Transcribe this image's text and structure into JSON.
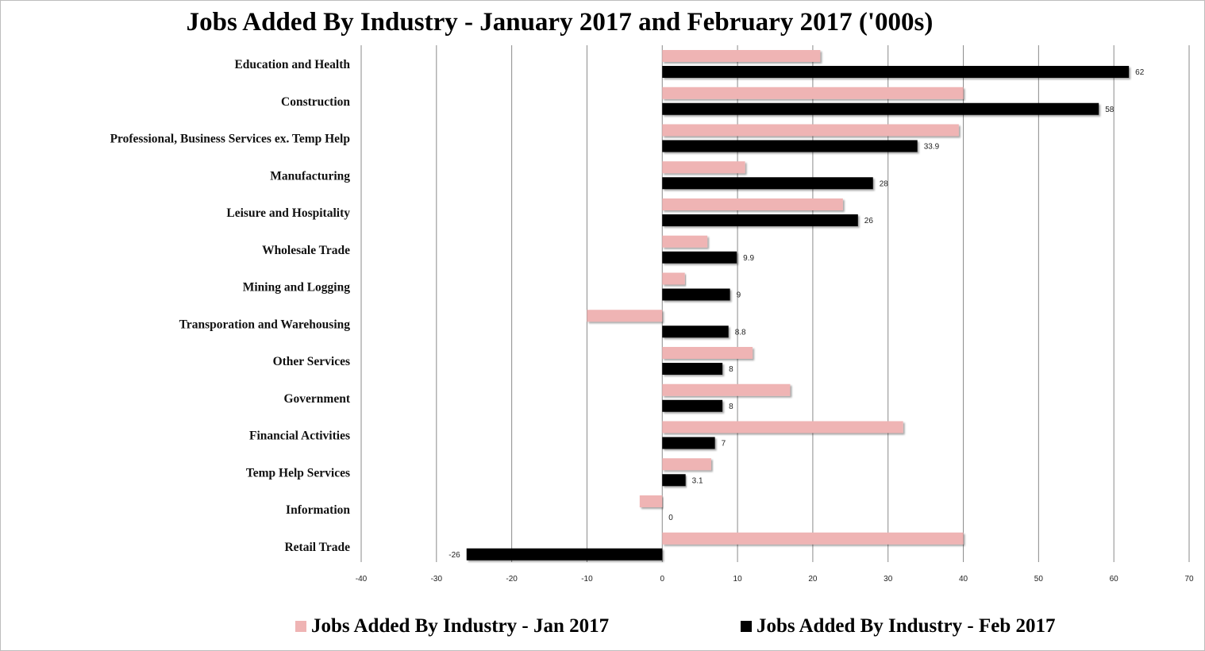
{
  "chart_data": {
    "type": "bar",
    "orientation": "horizontal",
    "title": "Jobs Added By Industry - January 2017 and February 2017 ('000s)",
    "xlabel": "",
    "ylabel": "",
    "xlim": [
      -40,
      70
    ],
    "xticks": [
      -40,
      -30,
      -20,
      -10,
      0,
      10,
      20,
      30,
      40,
      50,
      60,
      70
    ],
    "grid": true,
    "legend_position": "bottom",
    "categories": [
      "Education and Health",
      "Construction",
      "Professional, Business Services ex. Temp Help",
      "Manufacturing",
      "Leisure and Hospitality",
      "Wholesale Trade",
      "Mining and Logging",
      "Transporation and Warehousing",
      "Other Services",
      "Government",
      "Financial Activities",
      "Temp Help Services",
      "Information",
      "Retail Trade"
    ],
    "series": [
      {
        "name": "Jobs Added By Industry - Jan 2017",
        "color": "#efb4b4",
        "values": [
          21,
          40,
          39.4,
          11,
          24,
          6,
          3,
          -10,
          12,
          17,
          32,
          6.5,
          -3,
          40
        ]
      },
      {
        "name": "Jobs Added By Industry - Feb 2017",
        "color": "#000000",
        "values": [
          62,
          58,
          33.9,
          28,
          26,
          9.9,
          9,
          8.8,
          8,
          8,
          7,
          3.1,
          0,
          -26
        ],
        "data_labels": [
          "62",
          "58",
          "33.9",
          "28",
          "26",
          "9.9",
          "9",
          "8.8",
          "8",
          "8",
          "7",
          "3.1",
          "0",
          "-26"
        ]
      }
    ]
  }
}
